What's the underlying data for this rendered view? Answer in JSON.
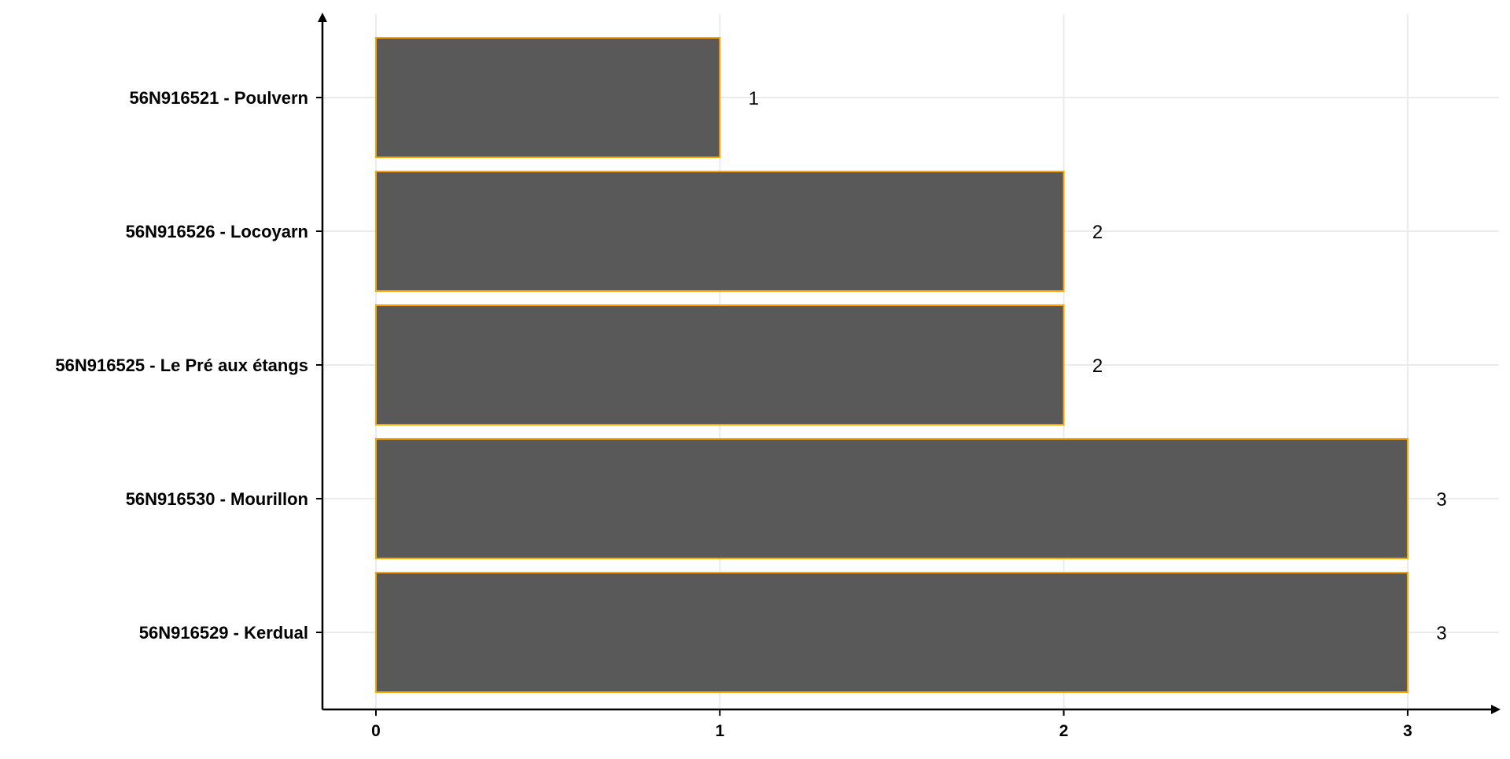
{
  "chart_data": {
    "type": "bar",
    "orientation": "horizontal",
    "categories": [
      "56N916521 - Poulvern",
      "56N916526 - Locoyarn",
      "56N916525 - Le Pré aux étangs",
      "56N916530 - Mourillon",
      "56N916529 - Kerdual"
    ],
    "values": [
      1,
      2,
      2,
      3,
      3
    ],
    "data_labels": [
      "1",
      "2",
      "2",
      "3",
      "3"
    ],
    "xticks": [
      0,
      1,
      2,
      3
    ],
    "xtick_labels": [
      "0",
      "1",
      "2",
      "3"
    ],
    "xlim": [
      -0.155,
      3.255
    ],
    "title": "",
    "xlabel": "",
    "ylabel": "",
    "grid": true,
    "legend": "none",
    "colors": {
      "bar_fill": "#595959",
      "bar_outline": "#FFA500",
      "grid": "#EBEBEB",
      "axis": "#000000"
    }
  }
}
